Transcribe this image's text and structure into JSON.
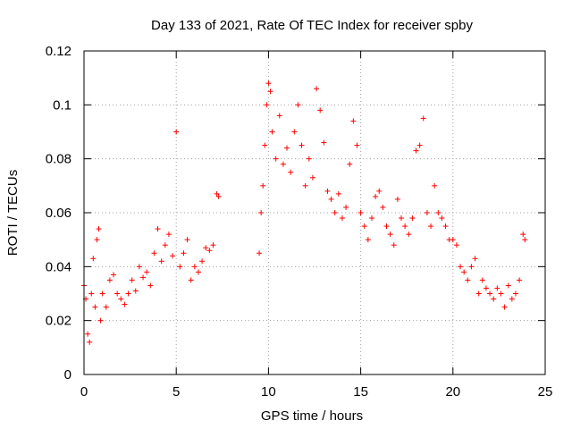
{
  "chart_data": {
    "type": "scatter",
    "title": "Day 133 of 2021, Rate Of TEC Index for receiver spby",
    "xlabel": "GPS time / hours",
    "ylabel": "ROTI / TECUs",
    "xlim": [
      0,
      25
    ],
    "ylim": [
      0,
      0.12
    ],
    "x_ticks": [
      0,
      5,
      10,
      15,
      20,
      25
    ],
    "y_ticks": [
      0,
      0.02,
      0.04,
      0.06,
      0.08,
      0.1,
      0.12
    ],
    "x_tick_labels": [
      "0",
      "5",
      "10",
      "15",
      "20",
      "25"
    ],
    "y_tick_labels": [
      "0",
      "0.02",
      "0.04",
      "0.06",
      "0.08",
      "0.1",
      "0.12"
    ],
    "grid": true,
    "marker": "plus",
    "color": "#ff0000",
    "series": [
      {
        "x": [
          0.0,
          0.1,
          0.2,
          0.3,
          0.4,
          0.5,
          0.6,
          0.7,
          0.8,
          0.9,
          1.0,
          1.2,
          1.4,
          1.6,
          1.8,
          2.0,
          2.2,
          2.4,
          2.6,
          2.8,
          3.0,
          3.2,
          3.4,
          3.6,
          3.8,
          4.0,
          4.2,
          4.4,
          4.6,
          4.8,
          5.0,
          5.2,
          5.4,
          5.6,
          5.8,
          6.0,
          6.2,
          6.4,
          6.6,
          6.8,
          7.0,
          7.2,
          7.3,
          9.5,
          9.6,
          9.7,
          9.8,
          9.9,
          10.0,
          10.1,
          10.2,
          10.4,
          10.6,
          10.8,
          11.0,
          11.2,
          11.4,
          11.6,
          11.8,
          12.0,
          12.2,
          12.4,
          12.6,
          12.8,
          13.0,
          13.2,
          13.4,
          13.6,
          13.8,
          14.0,
          14.2,
          14.4,
          14.6,
          14.8,
          15.0,
          15.2,
          15.4,
          15.6,
          15.8,
          16.0,
          16.2,
          16.4,
          16.6,
          16.8,
          17.0,
          17.2,
          17.4,
          17.6,
          17.8,
          18.0,
          18.2,
          18.4,
          18.6,
          18.8,
          19.0,
          19.2,
          19.4,
          19.6,
          19.8,
          20.0,
          20.2,
          20.4,
          20.6,
          20.8,
          21.0,
          21.2,
          21.4,
          21.6,
          21.8,
          22.0,
          22.2,
          22.4,
          22.6,
          22.8,
          23.0,
          23.2,
          23.4,
          23.6,
          23.8,
          23.9
        ],
        "y": [
          0.033,
          0.028,
          0.015,
          0.012,
          0.03,
          0.043,
          0.025,
          0.05,
          0.054,
          0.02,
          0.03,
          0.025,
          0.035,
          0.037,
          0.03,
          0.028,
          0.026,
          0.03,
          0.035,
          0.031,
          0.04,
          0.036,
          0.038,
          0.033,
          0.045,
          0.054,
          0.042,
          0.048,
          0.052,
          0.044,
          0.09,
          0.04,
          0.045,
          0.05,
          0.035,
          0.04,
          0.038,
          0.042,
          0.047,
          0.046,
          0.048,
          0.067,
          0.066,
          0.045,
          0.06,
          0.07,
          0.085,
          0.1,
          0.108,
          0.105,
          0.09,
          0.08,
          0.096,
          0.078,
          0.084,
          0.075,
          0.09,
          0.1,
          0.085,
          0.07,
          0.08,
          0.073,
          0.106,
          0.098,
          0.086,
          0.068,
          0.065,
          0.06,
          0.067,
          0.058,
          0.062,
          0.078,
          0.094,
          0.085,
          0.06,
          0.055,
          0.05,
          0.058,
          0.066,
          0.068,
          0.062,
          0.055,
          0.052,
          0.048,
          0.065,
          0.058,
          0.055,
          0.052,
          0.058,
          0.083,
          0.085,
          0.095,
          0.06,
          0.055,
          0.07,
          0.06,
          0.058,
          0.055,
          0.05,
          0.05,
          0.048,
          0.04,
          0.038,
          0.035,
          0.04,
          0.043,
          0.03,
          0.035,
          0.032,
          0.03,
          0.028,
          0.032,
          0.03,
          0.025,
          0.033,
          0.028,
          0.03,
          0.035,
          0.052,
          0.05
        ]
      }
    ]
  }
}
